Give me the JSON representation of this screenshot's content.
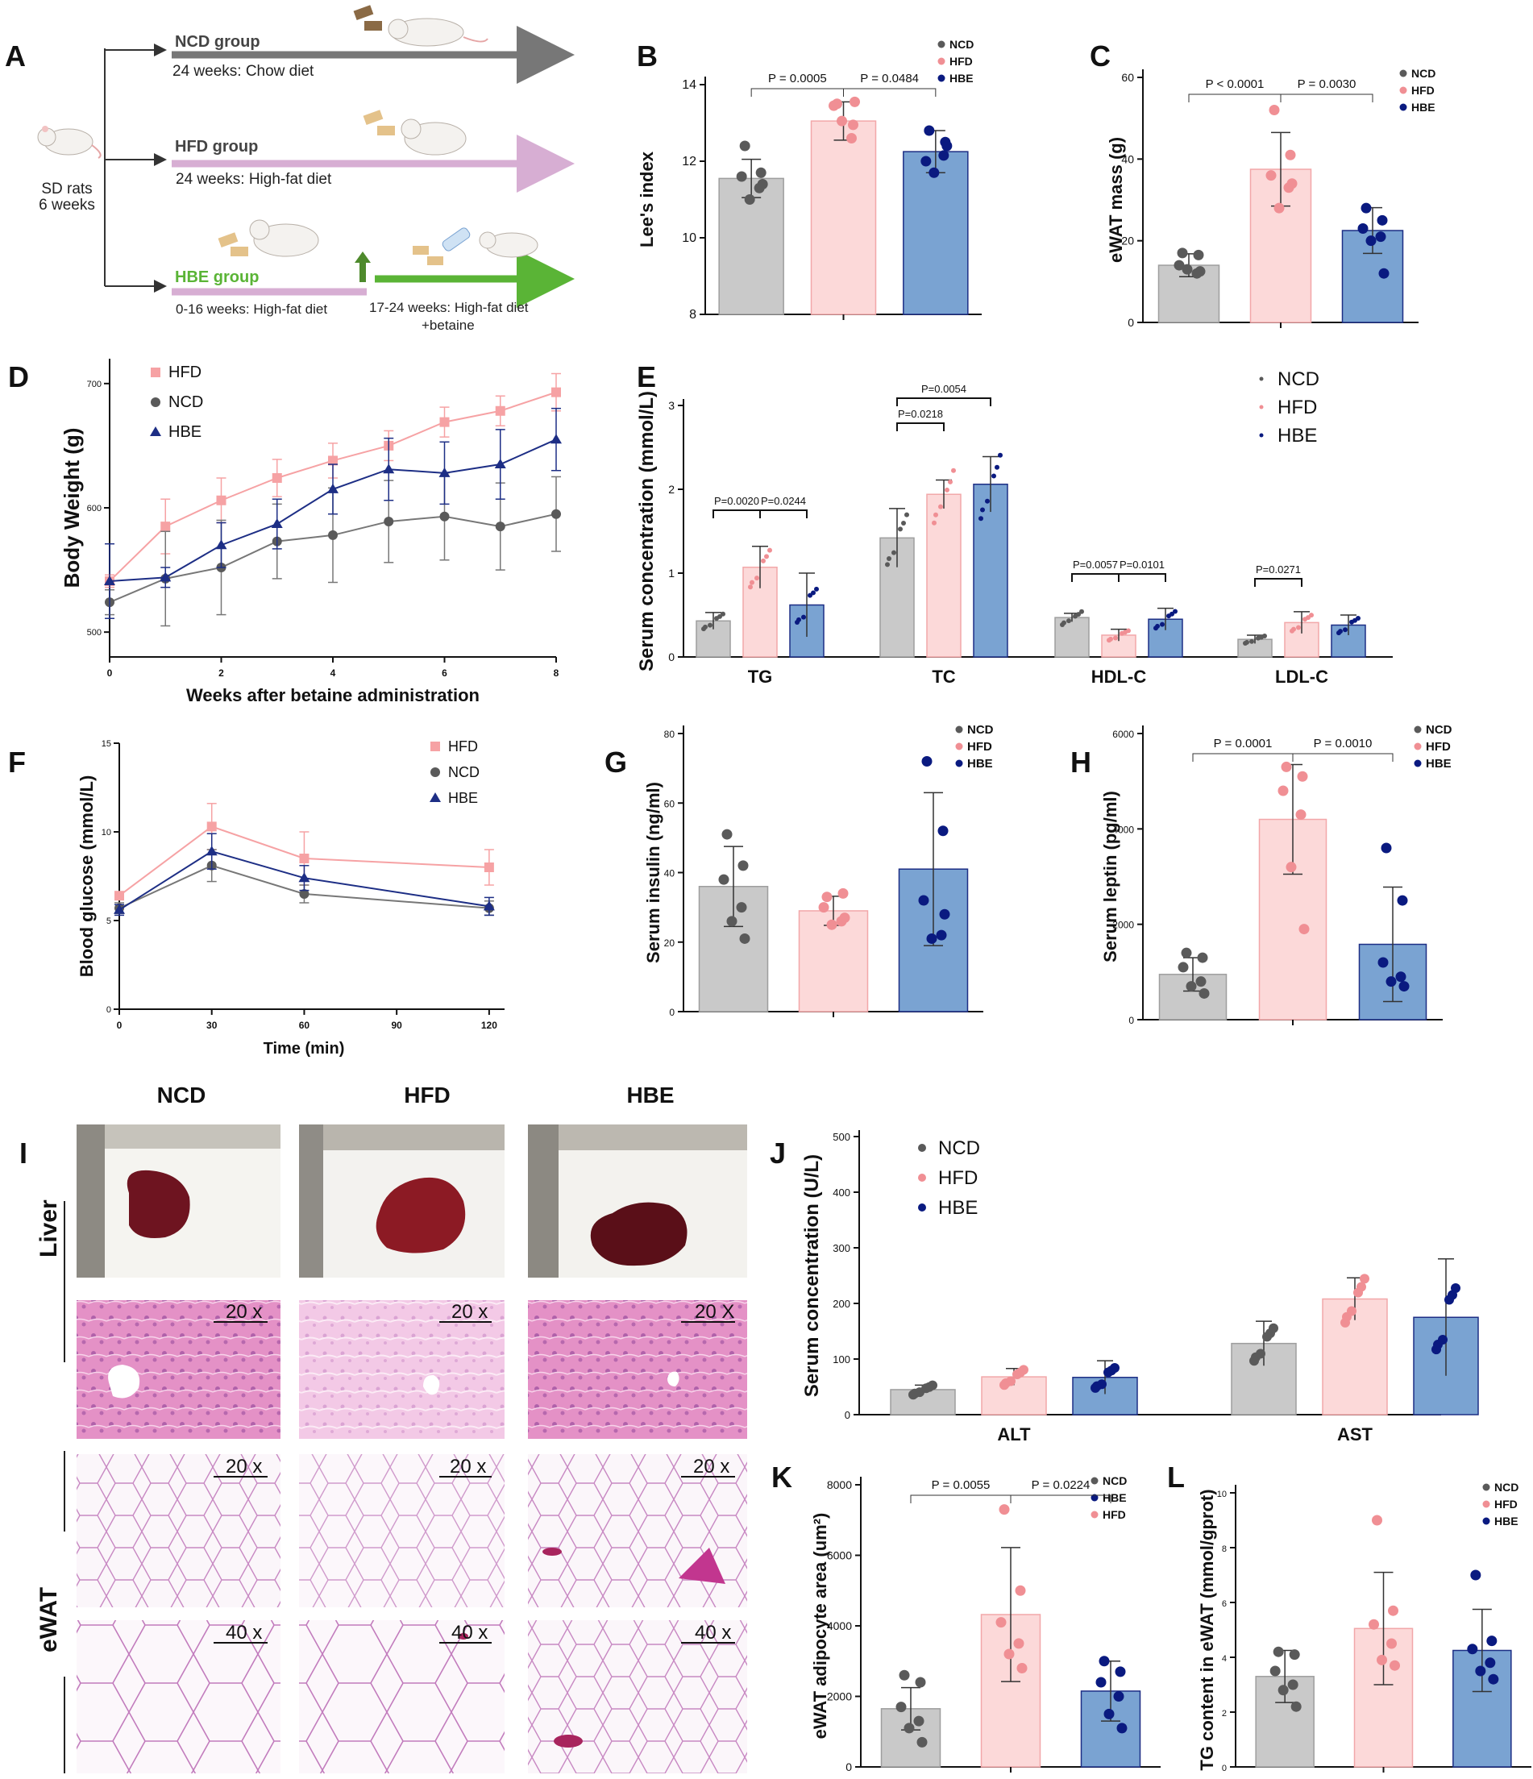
{
  "colors": {
    "ncd": "#c9c9c9",
    "hfd": "#fcd9d9",
    "hbe": "#7aa3d2",
    "ncd_dot": "#5a5a5a",
    "hfd_dot": "#f08f94",
    "hbe_dot": "#0a1a80",
    "ncd_edge": "#9e9e9e",
    "hfd_edge": "#f2a7a9",
    "hbe_edge": "#1d2e85",
    "green": "#5ab436",
    "pink_line": "#d7aed3",
    "grey_line": "#7d7d7d"
  },
  "panelA": {
    "letter": "A",
    "start": [
      "SD rats",
      "6 weeks"
    ],
    "groups": [
      {
        "name": "NCD group",
        "desc": "24 weeks: Chow diet"
      },
      {
        "name": "HFD group",
        "desc": "24 weeks: High-fat diet"
      },
      {
        "name": "HBE group",
        "desc": "0-16 weeks: High-fat diet",
        "desc2": "17-24 weeks: High-fat diet",
        "desc3": "+betaine"
      }
    ]
  },
  "panelI": {
    "letter": "I",
    "columns": [
      "NCD",
      "HFD",
      "HBE"
    ],
    "tissues": [
      "Liver",
      "eWAT"
    ],
    "mags": [
      [
        "20 x",
        "20 x",
        "20 X"
      ],
      [
        "20 x",
        "20 x",
        "20 x"
      ],
      [
        "40 x",
        "40 x",
        "40 x"
      ]
    ]
  },
  "chart_data": [
    {
      "id": "B",
      "letter": "B",
      "type": "bar",
      "ylabel": "Lee's index",
      "ylim": [
        8,
        14
      ],
      "yticks": [
        8,
        10,
        12,
        14
      ],
      "categories": [
        "NCD",
        "HFD",
        "HBE"
      ],
      "values": [
        11.55,
        13.05,
        12.25
      ],
      "sd": [
        0.5,
        0.5,
        0.55
      ],
      "points": [
        [
          12.4,
          11.7,
          11.6,
          11.3,
          11.0,
          11.4
        ],
        [
          13.5,
          12.95,
          13.45,
          12.6,
          13.05,
          13.55
        ],
        [
          12.8,
          12.5,
          12.0,
          12.15,
          11.7,
          12.4
        ]
      ],
      "legend": [
        "NCD",
        "HFD",
        "HBE"
      ],
      "pvals": [
        "P = 0.0005",
        "P = 0.0484"
      ]
    },
    {
      "id": "C",
      "letter": "C",
      "type": "bar",
      "ylabel": "eWAT mass (g)",
      "ylim": [
        0,
        60
      ],
      "yticks": [
        0,
        20,
        40,
        60
      ],
      "categories": [
        "NCD",
        "HFD",
        "HBE"
      ],
      "values": [
        14.0,
        37.5,
        22.5
      ],
      "sd": [
        2.8,
        9.0,
        5.6
      ],
      "points": [
        [
          17.0,
          16.5,
          14.0,
          12.0,
          13.0,
          12.5
        ],
        [
          52.0,
          41.0,
          36.0,
          33.0,
          28.0,
          34.0
        ],
        [
          28.0,
          25.0,
          23.0,
          21.0,
          20.0,
          12.0
        ]
      ],
      "legend": [
        "NCD",
        "HFD",
        "HBE"
      ],
      "pvals": [
        "P < 0.0001",
        "P = 0.0030"
      ]
    },
    {
      "id": "D",
      "letter": "D",
      "type": "line",
      "xlabel": "Weeks after betaine administration",
      "ylabel": "Body Weight (g)",
      "xlim": [
        0,
        8
      ],
      "xticks": [
        0,
        2,
        4,
        6,
        8
      ],
      "ylim": [
        480,
        720
      ],
      "yticks": [
        500,
        600,
        700
      ],
      "series": [
        {
          "name": "HFD",
          "x": [
            0,
            1,
            2,
            3,
            4,
            5,
            6,
            7,
            8
          ],
          "values": [
            541,
            585,
            606,
            624,
            638,
            650,
            669,
            678,
            693
          ],
          "sd": [
            5,
            22,
            18,
            15,
            14,
            12,
            12,
            12,
            15
          ]
        },
        {
          "name": "NCD",
          "x": [
            0,
            1,
            2,
            3,
            4,
            5,
            6,
            7,
            8
          ],
          "values": [
            524,
            543,
            552,
            573,
            578,
            589,
            593,
            585,
            595
          ],
          "sd": [
            10,
            38,
            38,
            30,
            38,
            33,
            35,
            35,
            30
          ]
        },
        {
          "name": "HBE",
          "x": [
            0,
            1,
            2,
            3,
            4,
            5,
            6,
            7,
            8
          ],
          "values": [
            541,
            544,
            570,
            587,
            615,
            631,
            628,
            635,
            655
          ],
          "sd": [
            30,
            8,
            18,
            20,
            20,
            25,
            25,
            28,
            25
          ]
        }
      ]
    },
    {
      "id": "E",
      "letter": "E",
      "type": "bar",
      "ylabel": "Serum concentration (mmol/L)",
      "ylim": [
        0,
        3
      ],
      "yticks": [
        0,
        1,
        2,
        3
      ],
      "categories": [
        "TG",
        "TC",
        "HDL-C",
        "LDL-C"
      ],
      "series": [
        {
          "name": "NCD",
          "values": [
            0.43,
            1.42,
            0.47,
            0.21
          ],
          "sd": [
            0.1,
            0.35,
            0.05,
            0.05
          ]
        },
        {
          "name": "HFD",
          "values": [
            1.07,
            1.94,
            0.26,
            0.41
          ],
          "sd": [
            0.25,
            0.17,
            0.07,
            0.13
          ]
        },
        {
          "name": "HBE",
          "values": [
            0.62,
            2.06,
            0.45,
            0.38
          ],
          "sd": [
            0.38,
            0.33,
            0.13,
            0.12
          ]
        }
      ],
      "legend": [
        "NCD",
        "HFD",
        "HBE"
      ],
      "pvals": [
        "P=0.0020",
        "P=0.0244",
        "P=0.0218",
        "P=0.0054",
        "P=0.0057",
        "P=0.0101",
        "P=0.0271"
      ]
    },
    {
      "id": "F",
      "letter": "F",
      "type": "line",
      "xlabel": "Time (min)",
      "ylabel": "Blood glucose (mmol/L)",
      "xlim": [
        0,
        125
      ],
      "xticks": [
        0,
        30,
        60,
        90,
        120
      ],
      "ylim": [
        0,
        15
      ],
      "yticks": [
        0,
        5,
        10,
        15
      ],
      "series": [
        {
          "name": "HFD",
          "x": [
            0,
            30,
            60,
            120
          ],
          "values": [
            6.4,
            10.3,
            8.5,
            8.0
          ],
          "sd": [
            0,
            1.3,
            1.5,
            1.0
          ]
        },
        {
          "name": "NCD",
          "x": [
            0,
            30,
            60,
            120
          ],
          "values": [
            5.7,
            8.1,
            6.5,
            5.7
          ],
          "sd": [
            0.3,
            0.9,
            0.5,
            0.4
          ]
        },
        {
          "name": "HBE",
          "x": [
            0,
            30,
            60,
            120
          ],
          "values": [
            5.6,
            8.9,
            7.4,
            5.8
          ],
          "sd": [
            0.3,
            1.0,
            0.7,
            0.5
          ]
        }
      ]
    },
    {
      "id": "G",
      "letter": "G",
      "type": "bar",
      "ylabel": "Serum insulin (ng/ml)",
      "ylim": [
        0,
        80
      ],
      "yticks": [
        0,
        20,
        40,
        60,
        80
      ],
      "categories": [
        "NCD",
        "HFD",
        "HBE"
      ],
      "values": [
        36.0,
        29.0,
        41.0
      ],
      "sd": [
        11.5,
        4.2,
        22.0
      ],
      "points": [
        [
          51.0,
          42.0,
          38.0,
          30.0,
          26.0,
          21.0
        ],
        [
          33.0,
          34.0,
          30.0,
          26.0,
          25.0,
          27.0
        ],
        [
          72.0,
          52.0,
          32.0,
          22.0,
          21.0,
          28.0
        ]
      ],
      "legend": [
        "NCD",
        "HFD",
        "HBE"
      ],
      "pvals": []
    },
    {
      "id": "H",
      "letter": "H",
      "type": "bar",
      "ylabel": "Serum leptin (pg/ml)",
      "ylim": [
        0,
        6000
      ],
      "yticks": [
        0,
        2000,
        4000,
        6000
      ],
      "categories": [
        "NCD",
        "HFD",
        "HBE"
      ],
      "values": [
        950,
        4200,
        1580
      ],
      "sd": [
        350,
        1150,
        1200
      ],
      "points": [
        [
          1400,
          1300,
          1100,
          800,
          700,
          550
        ],
        [
          5300,
          5100,
          4800,
          4300,
          3200,
          1900
        ],
        [
          3600,
          2500,
          1200,
          900,
          800,
          700
        ]
      ],
      "legend": [
        "NCD",
        "HFD",
        "HBE"
      ],
      "pvals": [
        "P = 0.0001",
        "P = 0.0010"
      ]
    },
    {
      "id": "J",
      "letter": "J",
      "type": "bar",
      "ylabel": "Serum concentration (U/L)",
      "ylim": [
        0,
        500
      ],
      "yticks": [
        0,
        100,
        200,
        300,
        400,
        500
      ],
      "categories": [
        "ALT",
        "AST"
      ],
      "series": [
        {
          "name": "NCD",
          "values": [
            45,
            128
          ],
          "sd": [
            8,
            40
          ]
        },
        {
          "name": "HFD",
          "values": [
            68,
            208
          ],
          "sd": [
            15,
            38
          ]
        },
        {
          "name": "HBE",
          "values": [
            67,
            175
          ],
          "sd": [
            30,
            105
          ]
        }
      ],
      "legend": [
        "NCD",
        "HFD",
        "HBE"
      ]
    },
    {
      "id": "K",
      "letter": "K",
      "type": "bar",
      "ylabel": "eWAT adipocyte area (um²)",
      "ylim": [
        0,
        8000
      ],
      "yticks": [
        0,
        2000,
        4000,
        6000,
        8000
      ],
      "categories": [
        "NCD",
        "HFD",
        "HBE"
      ],
      "values": [
        1650,
        4320,
        2150
      ],
      "sd": [
        600,
        1900,
        850
      ],
      "points": [
        [
          2600,
          2400,
          1700,
          1300,
          1100,
          700
        ],
        [
          7300,
          5000,
          4100,
          3500,
          3200,
          2800
        ],
        [
          3000,
          2700,
          2400,
          2000,
          1500,
          1100
        ]
      ],
      "legend": [
        "NCD",
        "HBE",
        "HFD"
      ],
      "pvals": [
        "P = 0.0055",
        "P = 0.0224"
      ]
    },
    {
      "id": "L",
      "letter": "L",
      "type": "bar",
      "ylabel": "TG content in eWAT (mmol/gprot)",
      "ylim": [
        0,
        10
      ],
      "yticks": [
        0,
        2,
        4,
        6,
        8,
        10
      ],
      "categories": [
        "NCD",
        "HFD",
        "HBE"
      ],
      "values": [
        3.3,
        5.05,
        4.25
      ],
      "sd": [
        0.95,
        2.05,
        1.5
      ],
      "points": [
        [
          4.2,
          4.1,
          3.5,
          3.0,
          2.8,
          2.2
        ],
        [
          9.0,
          5.7,
          5.2,
          4.5,
          3.9,
          3.7
        ],
        [
          7.0,
          4.6,
          4.3,
          3.8,
          3.5,
          3.2
        ]
      ],
      "legend": [
        "NCD",
        "HFD",
        "HBE"
      ],
      "pvals": []
    }
  ]
}
